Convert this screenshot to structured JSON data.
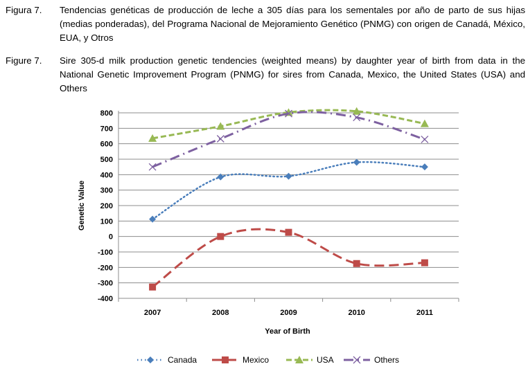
{
  "caption_es": {
    "label": "Figura 7.",
    "text": "Tendencias genéticas de producción de leche a 305 días para los sementales por año de parto de sus hijas (medias ponderadas), del Programa Nacional de Mejoramiento Genético (PNMG) con origen de Canadá, México, EUA, y Otros"
  },
  "caption_en": {
    "label": "Figure 7.",
    "text": "Sire 305-d milk production genetic tendencies (weighted means) by daughter year of birth from data in the National Genetic Improvement Program (PNMG) for sires from Canada, Mexico, the United States (USA) and Others"
  },
  "chart_data": {
    "type": "line",
    "xlabel": "Year of Birth",
    "ylabel": "Genetic Value",
    "categories": [
      "2007",
      "2008",
      "2009",
      "2010",
      "2011"
    ],
    "ylim": [
      -400,
      800
    ],
    "yticks": [
      "800",
      "700",
      "600",
      "500",
      "400",
      "300",
      "200",
      "100",
      "0",
      "-100",
      "-200",
      "-300",
      "-400"
    ],
    "grid": true,
    "legend": "bottom",
    "series": [
      {
        "name": "Canada",
        "values": [
          112,
          385,
          390,
          480,
          450
        ],
        "color": "#4a7ebb",
        "marker": "diamond",
        "dash": "dotted"
      },
      {
        "name": "Mexico",
        "values": [
          -327,
          0,
          27,
          -175,
          -170
        ],
        "color": "#be4b48",
        "marker": "square",
        "dash": "long-dash"
      },
      {
        "name": "USA",
        "values": [
          635,
          713,
          803,
          810,
          730
        ],
        "color": "#98b954",
        "marker": "triangle",
        "dash": "dash"
      },
      {
        "name": "Others",
        "values": [
          450,
          632,
          795,
          770,
          628
        ],
        "color": "#7d60a0",
        "marker": "x",
        "dash": "dash-dot"
      }
    ]
  }
}
